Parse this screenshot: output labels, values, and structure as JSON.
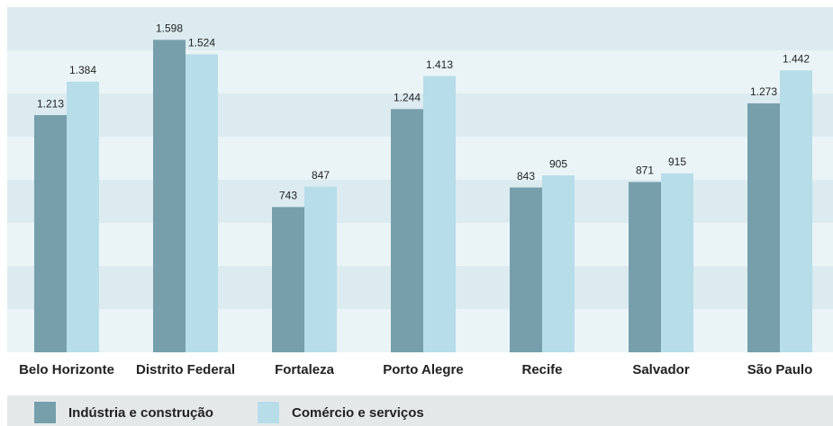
{
  "chart_data": {
    "type": "bar",
    "categories": [
      "Belo Horizonte",
      "Distrito Federal",
      "Fortaleza",
      "Porto Alegre",
      "Recife",
      "Salvador",
      "São Paulo"
    ],
    "series": [
      {
        "name": "Indústria e construção",
        "color": "#769fab",
        "values": [
          1213,
          1598,
          743,
          1244,
          843,
          871,
          1273
        ],
        "value_labels": [
          "1.213",
          "1.598",
          "743",
          "1.244",
          "843",
          "871",
          "1.273"
        ]
      },
      {
        "name": "Comércio e serviços",
        "color": "#b6dde8",
        "values": [
          1384,
          1524,
          847,
          1413,
          905,
          915,
          1442
        ],
        "value_labels": [
          "1.384",
          "1.524",
          "847",
          "1.413",
          "905",
          "915",
          "1.442"
        ]
      }
    ],
    "ylim": [
      0,
      1765
    ]
  }
}
